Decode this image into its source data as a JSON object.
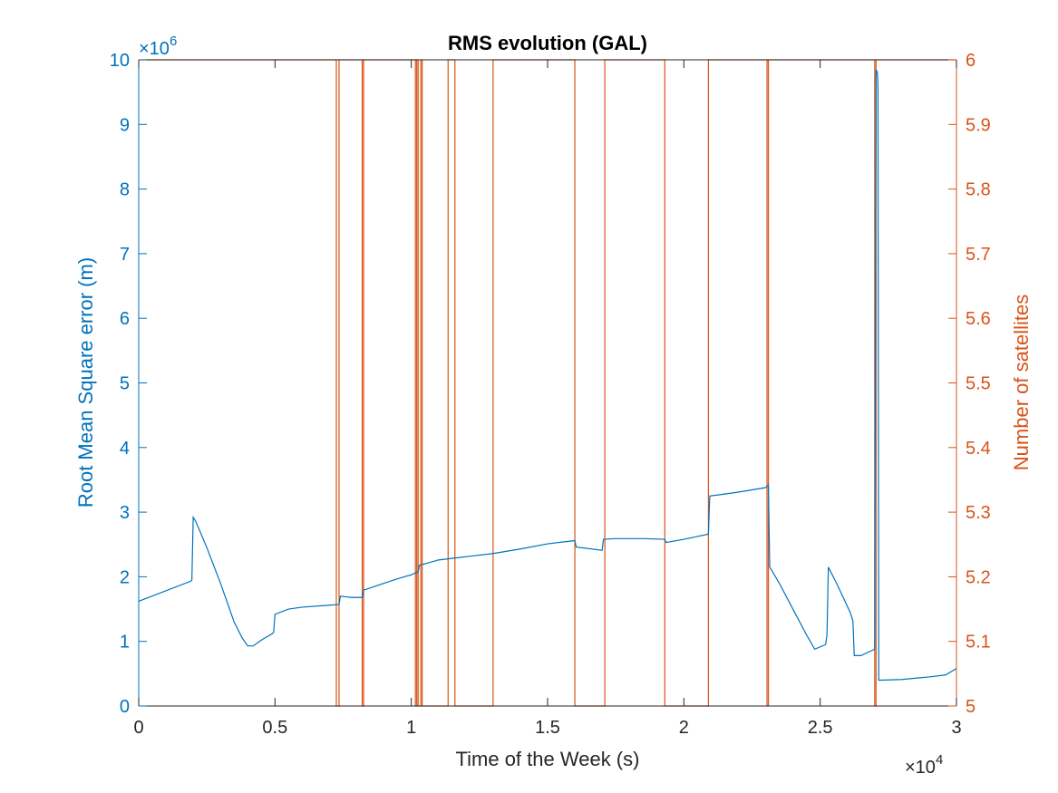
{
  "chart_data": {
    "type": "line",
    "title": "RMS evolution (GAL)",
    "xlabel": "Time of the Week (s)",
    "ylabel_left": "Root Mean Square error (m)",
    "ylabel_right": "Number of satellites",
    "x_multiplier_label": "×10",
    "x_multiplier_exp": "4",
    "y_multiplier_label": "×10",
    "y_multiplier_exp": "6",
    "xlim": [
      0,
      3
    ],
    "ylim_left": [
      0,
      10
    ],
    "ylim_right": [
      5,
      6
    ],
    "x_ticks": [
      "0",
      "0.5",
      "1",
      "1.5",
      "2",
      "2.5",
      "3"
    ],
    "y_left_ticks": [
      "0",
      "1",
      "2",
      "3",
      "4",
      "5",
      "6",
      "7",
      "8",
      "9",
      "10"
    ],
    "y_right_ticks": [
      "5",
      "5.1",
      "5.2",
      "5.3",
      "5.4",
      "5.5",
      "5.6",
      "5.7",
      "5.8",
      "5.9",
      "6"
    ],
    "grid": false,
    "colors": {
      "rms": "#0072bd",
      "sats": "#d95319",
      "axis": "#262626"
    },
    "series": [
      {
        "axis": "left",
        "color": "#0072bd",
        "x": [
          0,
          0.19,
          0.195,
          0.2,
          0.21,
          0.25,
          0.3,
          0.35,
          0.38,
          0.4,
          0.42,
          0.45,
          0.49,
          0.495,
          0.5,
          0.55,
          0.6,
          0.7,
          0.73,
          0.735,
          0.74,
          0.78,
          0.82,
          0.825,
          0.83,
          0.9,
          0.95,
          1.0,
          1.01,
          1.02,
          1.025,
          1.03,
          1.05,
          1.1,
          1.2,
          1.3,
          1.4,
          1.5,
          1.6,
          1.605,
          1.7,
          1.705,
          1.75,
          1.8,
          1.85,
          1.93,
          1.935,
          2.0,
          2.09,
          2.095,
          2.15,
          2.2,
          2.3,
          2.31,
          2.315,
          2.35,
          2.4,
          2.45,
          2.48,
          2.52,
          2.525,
          2.53,
          2.56,
          2.61,
          2.62,
          2.625,
          2.65,
          2.7,
          2.705,
          2.71,
          2.712,
          2.715,
          2.72,
          2.8,
          2.9,
          2.96,
          3.0
        ],
        "y": [
          1.62,
          1.93,
          1.95,
          2.92,
          2.85,
          2.45,
          1.9,
          1.3,
          1.05,
          0.93,
          0.93,
          1.02,
          1.12,
          1.14,
          1.42,
          1.5,
          1.53,
          1.56,
          1.57,
          1.57,
          1.7,
          1.68,
          1.68,
          1.8,
          1.8,
          1.9,
          1.97,
          2.03,
          2.05,
          2.07,
          2.07,
          2.18,
          2.2,
          2.26,
          2.31,
          2.36,
          2.43,
          2.51,
          2.56,
          2.46,
          2.41,
          2.58,
          2.59,
          2.59,
          2.59,
          2.58,
          2.53,
          2.58,
          2.66,
          3.25,
          3.28,
          3.31,
          3.38,
          3.42,
          2.15,
          1.9,
          1.5,
          1.1,
          0.88,
          0.95,
          1.1,
          2.15,
          1.9,
          1.45,
          1.32,
          0.78,
          0.78,
          0.88,
          9.85,
          9.8,
          9.6,
          0.4,
          0.4,
          0.41,
          0.45,
          0.48,
          0.58
        ]
      },
      {
        "axis": "right",
        "color": "#d95319",
        "x": [
          0,
          0.725,
          0.725,
          0.735,
          0.735,
          0.82,
          0.82,
          0.825,
          0.825,
          1.015,
          1.015,
          1.02,
          1.02,
          1.025,
          1.025,
          1.035,
          1.035,
          1.04,
          1.04,
          1.135,
          1.135,
          1.16,
          1.16,
          1.3,
          1.3,
          1.6,
          1.6,
          1.71,
          1.71,
          1.93,
          1.93,
          2.09,
          2.09,
          2.305,
          2.305,
          2.31,
          2.31,
          2.7,
          2.7,
          2.705,
          2.705,
          3.0
        ],
        "y": [
          6,
          6,
          5,
          5,
          6,
          6,
          5,
          5,
          6,
          6,
          5,
          5,
          6,
          6,
          5,
          5,
          6,
          6,
          5,
          5,
          6,
          6,
          5,
          5,
          6,
          6,
          5,
          5,
          6,
          6,
          5,
          5,
          6,
          6,
          5,
          5,
          6,
          6,
          5,
          5,
          6,
          6
        ]
      }
    ]
  }
}
